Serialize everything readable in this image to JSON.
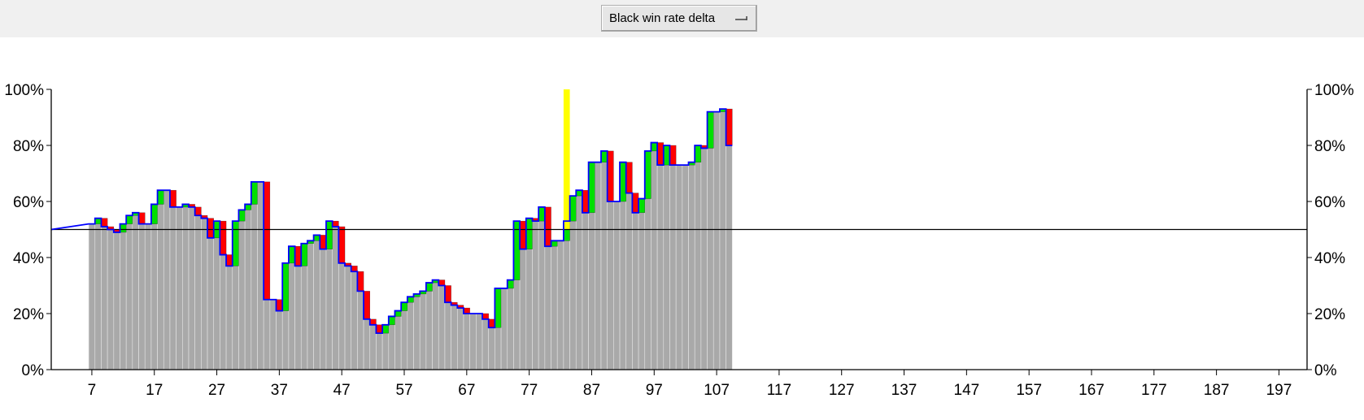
{
  "toolbar": {
    "mode_select_value": "Black win rate delta"
  },
  "colors": {
    "bar_fill": "#a9a9a9",
    "bar_separator": "#e6e6e6",
    "loss": "#ff0000",
    "gain": "#00e000",
    "line": "#0000ff",
    "current_move_marker": "#ffff00",
    "baseline": "#000000",
    "axis": "#000000"
  },
  "chart_data": {
    "type": "bar",
    "title": "",
    "xlabel": "",
    "ylabel": "",
    "xlim": [
      1,
      202
    ],
    "ylim": [
      0,
      100
    ],
    "baseline": 50,
    "current_move": 83,
    "grid": false,
    "x_ticks": [
      7,
      17,
      27,
      37,
      47,
      57,
      67,
      77,
      87,
      97,
      107,
      117,
      127,
      137,
      147,
      157,
      167,
      177,
      187,
      197
    ],
    "y_ticks": [
      "0%",
      "20%",
      "40%",
      "60%",
      "80%",
      "100%"
    ],
    "y_tick_values": [
      0,
      20,
      40,
      60,
      80,
      100
    ],
    "start_move": 7,
    "pre_start_values": [
      {
        "move": 1,
        "value": 50
      },
      {
        "move": 7,
        "value": 52
      }
    ],
    "win_rate": [
      52,
      54,
      51,
      50,
      49,
      52,
      55,
      56,
      52,
      52,
      59,
      64,
      64,
      58,
      58,
      59,
      58,
      55,
      54,
      47,
      53,
      41,
      37,
      53,
      57,
      59,
      67,
      67,
      25,
      25,
      21,
      38,
      44,
      37,
      45,
      46,
      48,
      43,
      53,
      51,
      38,
      37,
      35,
      28,
      18,
      16,
      13,
      16,
      19,
      21,
      24,
      26,
      27,
      28,
      31,
      32,
      30,
      24,
      23,
      22,
      20,
      20,
      20,
      18,
      15,
      29,
      29,
      32,
      53,
      43,
      54,
      53,
      58,
      44,
      46,
      46,
      53,
      62,
      64,
      56,
      74,
      74,
      78,
      60,
      60,
      74,
      63,
      56,
      61,
      78,
      81,
      73,
      80,
      73,
      73,
      73,
      74,
      80,
      79,
      92,
      92,
      93,
      80
    ]
  }
}
